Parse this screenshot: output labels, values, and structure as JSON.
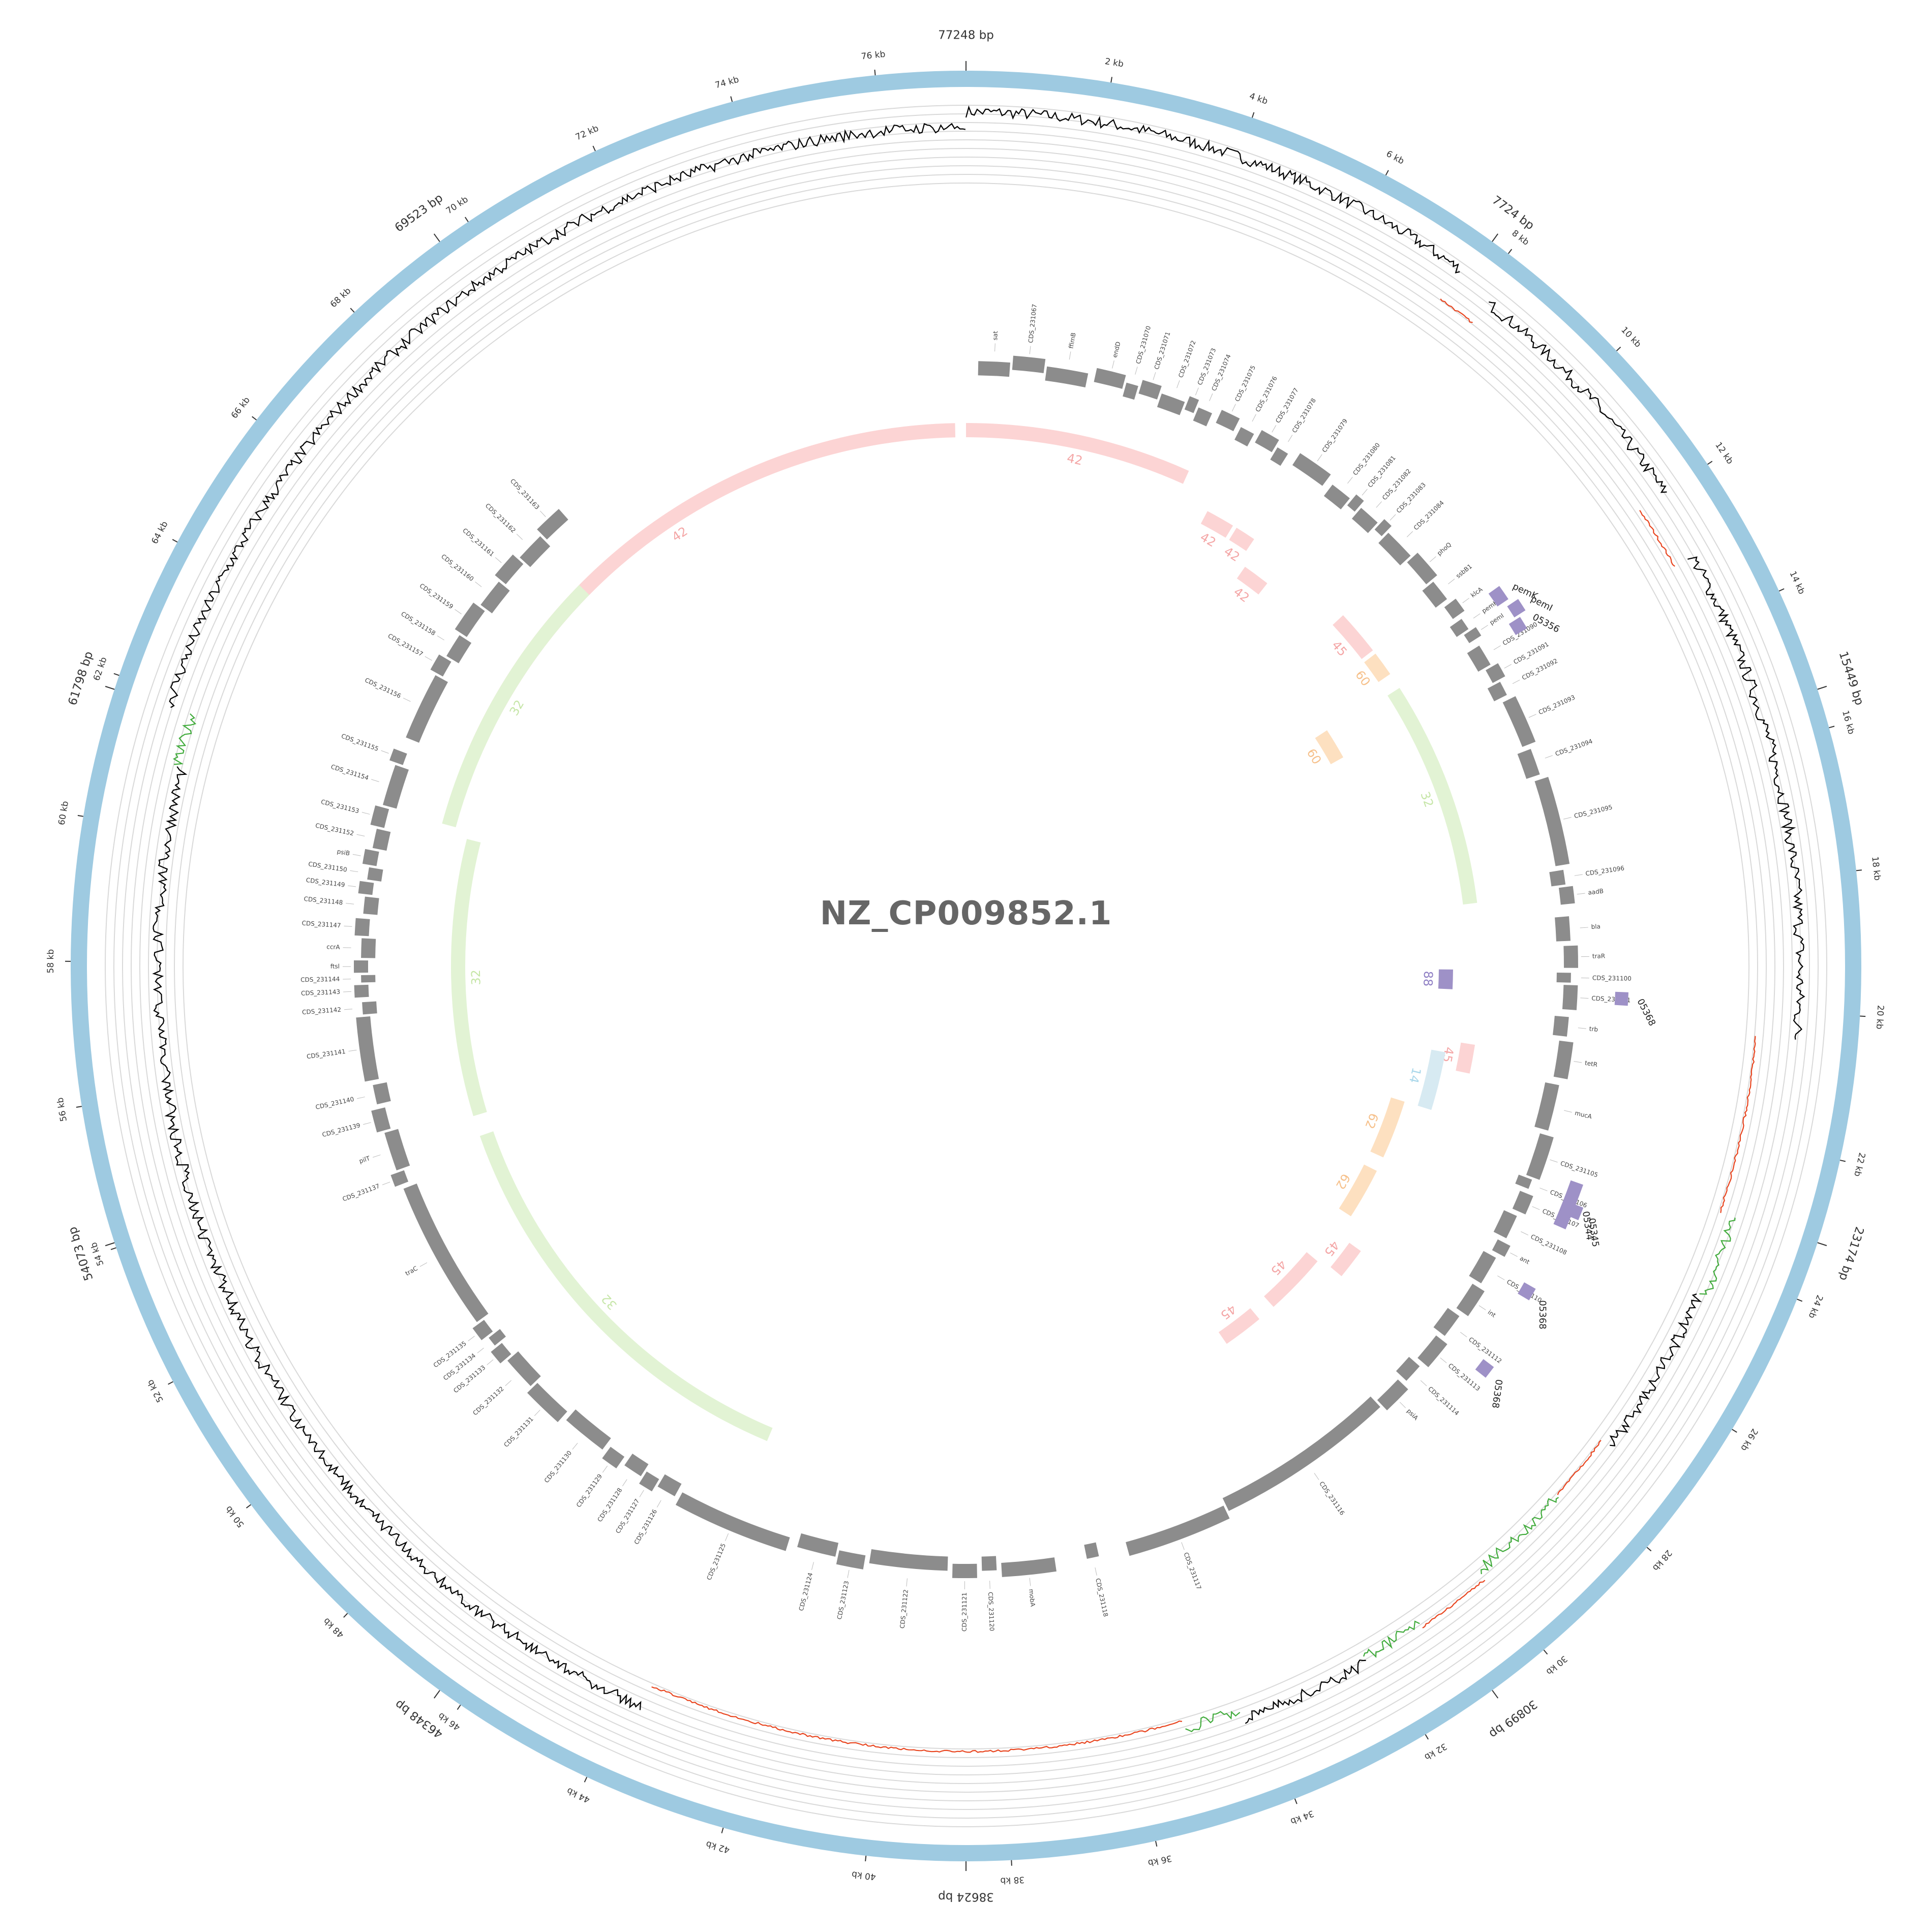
{
  "plot": {
    "title": "NZ_CP009852.1",
    "total_bp": 77248,
    "colors": {
      "backbone": "#9ecae1",
      "gene": "#8c8c8c",
      "gc_line": "#000000",
      "gc_low": "#e8451f",
      "gc_high": "#41ab3c",
      "grid": "#d9d9d9",
      "arg": "#9e91c7",
      "block_pink": "#fcd4d4",
      "block_orange": "#fde0c0",
      "block_green": "#e2f3d4",
      "block_blue": "#d7eaf2",
      "block_pink_text": "#f4a6a6",
      "block_orange_text": "#f6c08a",
      "block_green_text": "#c6e6a8",
      "block_blue_text": "#a9d7ea",
      "block_purple_text": "#8f7fc4"
    },
    "kb_ticks": [
      "2 kb",
      "4 kb",
      "6 kb",
      "8 kb",
      "10 kb",
      "12 kb",
      "14 kb",
      "16 kb",
      "18 kb",
      "20 kb",
      "22 kb",
      "24 kb",
      "26 kb",
      "28 kb",
      "30 kb",
      "32 kb",
      "34 kb",
      "36 kb",
      "38 kb",
      "40 kb",
      "42 kb",
      "44 kb",
      "46 kb",
      "48 kb",
      "50 kb",
      "52 kb",
      "54 kb",
      "56 kb",
      "58 kb",
      "60 kb",
      "62 kb",
      "64 kb",
      "66 kb",
      "68 kb",
      "70 kb",
      "72 kb",
      "74 kb",
      "76 kb"
    ],
    "ref_labels": [
      {
        "bp": 0,
        "label": "77248 bp"
      },
      {
        "bp": 7724,
        "label": "7724 bp"
      },
      {
        "bp": 15449,
        "label": "15449 bp"
      },
      {
        "bp": 23174,
        "label": "23174 bp"
      },
      {
        "bp": 30899,
        "label": "30899 bp"
      },
      {
        "bp": 38624,
        "label": "38624 bp"
      },
      {
        "bp": 46348,
        "label": "46348 bp"
      },
      {
        "bp": 54073,
        "label": "54073 bp"
      },
      {
        "bp": 61798,
        "label": "61798 bp"
      },
      {
        "bp": 69523,
        "label": "69523 bp"
      }
    ],
    "genes": [
      {
        "s": 250,
        "e": 900,
        "label": "sat"
      },
      {
        "s": 950,
        "e": 1600,
        "label": "CDS_231067"
      },
      {
        "s": 1650,
        "e": 2500,
        "label": "ffimB"
      },
      {
        "s": 2650,
        "e": 3250,
        "label": "endD"
      },
      {
        "s": 3300,
        "e": 3550,
        "label": "CDS_231070"
      },
      {
        "s": 3600,
        "e": 4000,
        "label": "CDS_231071"
      },
      {
        "s": 4050,
        "e": 4550,
        "label": "CDS_231072"
      },
      {
        "s": 4600,
        "e": 4800,
        "label": "CDS_231073"
      },
      {
        "s": 4850,
        "e": 5150,
        "label": "CDS_231074"
      },
      {
        "s": 5300,
        "e": 5700,
        "label": "CDS_231075"
      },
      {
        "s": 5800,
        "e": 6100,
        "label": "CDS_231076"
      },
      {
        "s": 6200,
        "e": 6600,
        "label": "CDS_231077"
      },
      {
        "s": 6650,
        "e": 6900,
        "label": "CDS_231078"
      },
      {
        "s": 7100,
        "e": 7850,
        "label": "CDS_231079"
      },
      {
        "s": 8000,
        "e": 8450,
        "label": "CDS_231080"
      },
      {
        "s": 8500,
        "e": 8700,
        "label": "CDS_231081"
      },
      {
        "s": 8750,
        "e": 9200,
        "label": "CDS_231082"
      },
      {
        "s": 9250,
        "e": 9450,
        "label": "CDS_231083"
      },
      {
        "s": 9500,
        "e": 10150,
        "label": "CDS_231084"
      },
      {
        "s": 10200,
        "e": 10800,
        "label": "phoQ"
      },
      {
        "s": 10850,
        "e": 11300,
        "label": "ssbB1"
      },
      {
        "s": 11400,
        "e": 11700,
        "label": "klcA"
      },
      {
        "s": 11800,
        "e": 12050,
        "label": "pemK"
      },
      {
        "s": 12100,
        "e": 12300,
        "label": "pemI"
      },
      {
        "s": 12450,
        "e": 12900,
        "label": "CDS_231090"
      },
      {
        "s": 12950,
        "e": 13250,
        "label": "CDS_231091"
      },
      {
        "s": 13300,
        "e": 13600,
        "label": "CDS_231092"
      },
      {
        "s": 13700,
        "e": 14700,
        "label": "CDS_231093"
      },
      {
        "s": 14800,
        "e": 15350,
        "label": "CDS_231094"
      },
      {
        "s": 15450,
        "e": 17250,
        "label": "CDS_231095"
      },
      {
        "s": 17350,
        "e": 17650,
        "label": "CDS_231096"
      },
      {
        "s": 17700,
        "e": 18050,
        "label": "aadB"
      },
      {
        "s": 18300,
        "e": 18800,
        "label": "bla"
      },
      {
        "s": 18900,
        "e": 19350,
        "label": "traR"
      },
      {
        "s": 19450,
        "e": 19650,
        "label": "CDS_231100"
      },
      {
        "s": 19700,
        "e": 20200,
        "label": "CDS_231101"
      },
      {
        "s": 20350,
        "e": 20750,
        "label": "trb"
      },
      {
        "s": 20850,
        "e": 21600,
        "label": "tetR"
      },
      {
        "s": 21750,
        "e": 22700,
        "label": "mucA"
      },
      {
        "s": 22800,
        "e": 23700,
        "label": "CDS_231105"
      },
      {
        "s": 23750,
        "e": 23950,
        "label": "CDS_231106"
      },
      {
        "s": 24050,
        "e": 24450,
        "label": "CDS_231107"
      },
      {
        "s": 24550,
        "e": 25050,
        "label": "CDS_231108"
      },
      {
        "s": 25150,
        "e": 25400,
        "label": "ant"
      },
      {
        "s": 25500,
        "e": 26100,
        "label": "CDS_231110"
      },
      {
        "s": 26200,
        "e": 26800,
        "label": "int"
      },
      {
        "s": 26900,
        "e": 27400,
        "label": "CDS_231112"
      },
      {
        "s": 27500,
        "e": 28100,
        "label": "CDS_231113"
      },
      {
        "s": 28200,
        "e": 28600,
        "label": "CDS_231114"
      },
      {
        "s": 28700,
        "e": 29300,
        "label": "psiA"
      },
      {
        "s": 29350,
        "e": 33100,
        "label": "CDS_231116"
      },
      {
        "s": 33150,
        "e": 35300,
        "label": "CDS_231117"
      },
      {
        "s": 35900,
        "e": 36150,
        "label": "CDS_231118"
      },
      {
        "s": 36800,
        "e": 37900,
        "label": "mobA"
      },
      {
        "s": 38000,
        "e": 38300,
        "label": "CDS_231120"
      },
      {
        "s": 38400,
        "e": 38900,
        "label": "CDS_231121"
      },
      {
        "s": 39000,
        "e": 40600,
        "label": "CDS_231122"
      },
      {
        "s": 40700,
        "e": 41250,
        "label": "CDS_231123"
      },
      {
        "s": 41300,
        "e": 42100,
        "label": "CDS_231124"
      },
      {
        "s": 42300,
        "e": 44700,
        "label": "CDS_231125"
      },
      {
        "s": 44800,
        "e": 45200,
        "label": "CDS_231126"
      },
      {
        "s": 45250,
        "e": 45550,
        "label": "CDS_231127"
      },
      {
        "s": 45600,
        "e": 46000,
        "label": "CDS_231128"
      },
      {
        "s": 46100,
        "e": 46450,
        "label": "CDS_231129"
      },
      {
        "s": 46550,
        "e": 47500,
        "label": "CDS_231130"
      },
      {
        "s": 47600,
        "e": 48450,
        "label": "CDS_231131"
      },
      {
        "s": 48500,
        "e": 49200,
        "label": "CDS_231132"
      },
      {
        "s": 49250,
        "e": 49550,
        "label": "CDS_231133"
      },
      {
        "s": 49600,
        "e": 49800,
        "label": "CDS_231134"
      },
      {
        "s": 49850,
        "e": 50150,
        "label": "CDS_231135"
      },
      {
        "s": 50200,
        "e": 53300,
        "label": "traC"
      },
      {
        "s": 53400,
        "e": 53650,
        "label": "CDS_231137"
      },
      {
        "s": 53700,
        "e": 54500,
        "label": "pilT"
      },
      {
        "s": 54550,
        "e": 55000,
        "label": "CDS_231139"
      },
      {
        "s": 55100,
        "e": 55500,
        "label": "CDS_231140"
      },
      {
        "s": 55600,
        "e": 56900,
        "label": "CDS_231141"
      },
      {
        "s": 56950,
        "e": 57200,
        "label": "CDS_231142"
      },
      {
        "s": 57300,
        "e": 57550,
        "label": "CDS_231143"
      },
      {
        "s": 57600,
        "e": 57750,
        "label": "CDS_231144"
      },
      {
        "s": 57800,
        "e": 58050,
        "label": "ftsl"
      },
      {
        "s": 58100,
        "e": 58500,
        "label": "ccrA"
      },
      {
        "s": 58550,
        "e": 58900,
        "label": "CDS_231147"
      },
      {
        "s": 59000,
        "e": 59350,
        "label": "CDS_231148"
      },
      {
        "s": 59400,
        "e": 59650,
        "label": "CDS_231149"
      },
      {
        "s": 59700,
        "e": 59950,
        "label": "CDS_231150"
      },
      {
        "s": 60000,
        "e": 60300,
        "label": "psiB"
      },
      {
        "s": 60350,
        "e": 60750,
        "label": "CDS_231152"
      },
      {
        "s": 60800,
        "e": 61200,
        "label": "CDS_231153"
      },
      {
        "s": 61250,
        "e": 62100,
        "label": "CDS_231154"
      },
      {
        "s": 62150,
        "e": 62400,
        "label": "CDS_231155"
      },
      {
        "s": 62700,
        "e": 64100,
        "label": "CDS_231156"
      },
      {
        "s": 64150,
        "e": 64500,
        "label": "CDS_231157"
      },
      {
        "s": 64550,
        "e": 65050,
        "label": "CDS_231158"
      },
      {
        "s": 65100,
        "e": 65750,
        "label": "CDS_231159"
      },
      {
        "s": 65800,
        "e": 66400,
        "label": "CDS_231160"
      },
      {
        "s": 66450,
        "e": 67000,
        "label": "CDS_231161"
      },
      {
        "s": 67050,
        "e": 67650,
        "label": "CDS_231162"
      },
      {
        "s": 67700,
        "e": 68300,
        "label": "CDS_231163"
      }
    ],
    "args": [
      {
        "s": 11700,
        "e": 12000,
        "label": "pemK"
      },
      {
        "s": 12100,
        "e": 12350,
        "label": "pemI"
      },
      {
        "s": 12400,
        "e": 12650,
        "label": "05356"
      },
      {
        "s": 19800,
        "e": 20050,
        "label": "05368"
      },
      {
        "s": 23500,
        "e": 24400,
        "label": "05344"
      },
      {
        "s": 23900,
        "e": 24150,
        "label": "05345"
      },
      {
        "s": 25650,
        "e": 25900,
        "label": "05368"
      },
      {
        "s": 27300,
        "e": 27550,
        "label": "05368"
      }
    ],
    "blocks": [
      {
        "s": 0,
        "e": 5200,
        "ring": 1,
        "color": "pink",
        "label": "42"
      },
      {
        "s": 63100,
        "e": 77000,
        "ring": 1,
        "color": "pink",
        "label": "42"
      },
      {
        "s": 6000,
        "e": 6700,
        "ring": 2,
        "color": "pink",
        "label": "42"
      },
      {
        "s": 6800,
        "e": 7300,
        "ring": 2,
        "color": "pink",
        "label": "42"
      },
      {
        "s": 7500,
        "e": 8200,
        "ring": 3,
        "color": "pink",
        "label": "42"
      },
      {
        "s": 10100,
        "e": 11200,
        "ring": 2,
        "color": "pink",
        "label": "45"
      },
      {
        "s": 11300,
        "e": 11900,
        "ring": 2,
        "color": "orange",
        "label": "60"
      },
      {
        "s": 12200,
        "e": 13100,
        "ring": 5,
        "color": "orange",
        "label": "60"
      },
      {
        "s": 12300,
        "e": 17800,
        "ring": 2,
        "color": "green",
        "label": "32"
      },
      {
        "s": 19400,
        "e": 19900,
        "ring": 3,
        "color": "purple",
        "label": "88"
      },
      {
        "s": 21200,
        "e": 21900,
        "ring": 2,
        "color": "pink",
        "label": "45"
      },
      {
        "s": 21500,
        "e": 23000,
        "ring": 3,
        "color": "blue",
        "label": "14"
      },
      {
        "s": 23000,
        "e": 24600,
        "ring": 4,
        "color": "orange",
        "label": "62"
      },
      {
        "s": 25000,
        "e": 26400,
        "ring": 4,
        "color": "orange",
        "label": "62"
      },
      {
        "s": 27000,
        "e": 27800,
        "ring": 3,
        "color": "pink",
        "label": "45"
      },
      {
        "s": 27900,
        "e": 29600,
        "ring": 4,
        "color": "pink",
        "label": "45"
      },
      {
        "s": 30100,
        "e": 31200,
        "ring": 4,
        "color": "pink",
        "label": "45"
      },
      {
        "s": 43500,
        "e": 53800,
        "ring": 2,
        "color": "green",
        "label": "32"
      },
      {
        "s": 54300,
        "e": 61000,
        "ring": 2,
        "color": "green",
        "label": "32"
      },
      {
        "s": 61200,
        "e": 67500,
        "ring": 1,
        "color": "green",
        "label": "32"
      }
    ]
  }
}
